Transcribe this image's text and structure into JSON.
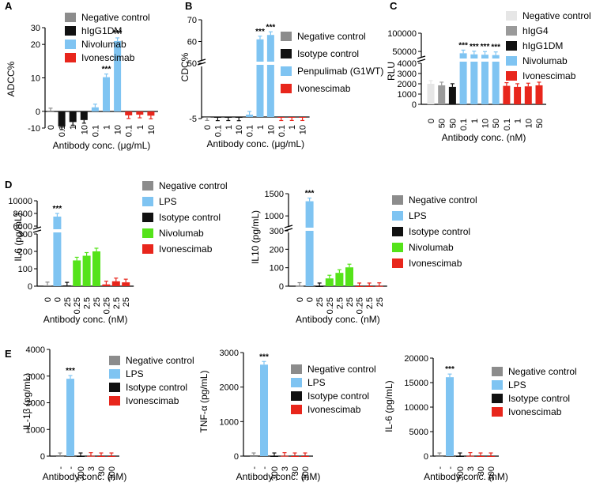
{
  "colors": {
    "negative_control": "#8c8c8c",
    "negative_control_light": "#e6e6e6",
    "hIgG4": "#9a9a9a",
    "black": "#111111",
    "blue": "#7fc4f2",
    "red": "#e8261c",
    "green": "#55e31a"
  },
  "chart_data": [
    {
      "id": "A",
      "panel_letter": "A",
      "type": "bar",
      "ylabel": "ADCC%",
      "xlabel": "Antibody conc. (μg/mL)",
      "ylim": [
        -5,
        25
      ],
      "yticks": [
        "-10",
        "0",
        "10",
        "20",
        "30"
      ],
      "categories": [
        "0",
        "0.1",
        "1",
        "10",
        "0.1",
        "1",
        "10",
        "0.1",
        "1",
        "10"
      ],
      "series": [
        {
          "name": "Negative control",
          "color": "#8c8c8c",
          "values": [
            0,
            null,
            null,
            null,
            null,
            null,
            null,
            null,
            null,
            null
          ]
        },
        {
          "name": "hIgG1DM",
          "color": "#111111",
          "values": [
            null,
            -4.5,
            -3.2,
            -2.6,
            null,
            null,
            null,
            null,
            null,
            null
          ]
        },
        {
          "name": "Nivolumab",
          "color": "#7fc4f2",
          "values": [
            null,
            null,
            null,
            null,
            1.2,
            10.2,
            21.0,
            null,
            null,
            null
          ]
        },
        {
          "name": "Ivonescimab",
          "color": "#e8261c",
          "values": [
            null,
            null,
            null,
            null,
            null,
            null,
            null,
            -1.2,
            -1.0,
            -1.3
          ]
        }
      ],
      "significance": [
        "",
        "",
        "",
        "",
        "",
        "***",
        "***",
        "",
        "",
        ""
      ],
      "legend": [
        "Negative control",
        "hIgG1DM",
        "Nivolumab",
        "Ivonescimab"
      ]
    },
    {
      "id": "B",
      "panel_letter": "B",
      "type": "bar",
      "ylabel": "CDC%",
      "xlabel": "Antibody conc. (μg/mL)",
      "ylim": [
        -5,
        70
      ],
      "yticks": [
        "-5",
        "50",
        "60",
        "70"
      ],
      "categories": [
        "0",
        "0.1",
        "1",
        "10",
        "0.1",
        "1",
        "10",
        "0.1",
        "1",
        "10"
      ],
      "series": [
        {
          "name": "Negative control",
          "color": "#8c8c8c",
          "values": [
            -1.0,
            null,
            null,
            null,
            null,
            null,
            null,
            null,
            null,
            null
          ]
        },
        {
          "name": "Isotype control",
          "color": "#111111",
          "values": [
            null,
            -1.5,
            -1.3,
            -1.7,
            null,
            null,
            null,
            null,
            null,
            null
          ]
        },
        {
          "name": "Penpulimab (G1WT)",
          "color": "#7fc4f2",
          "values": [
            null,
            null,
            null,
            null,
            2.0,
            61.0,
            63.0,
            null,
            null,
            null
          ]
        },
        {
          "name": "Ivonescimab",
          "color": "#e8261c",
          "values": [
            null,
            null,
            null,
            null,
            null,
            null,
            null,
            -1.2,
            -1.0,
            -1.1
          ]
        }
      ],
      "significance": [
        "",
        "",
        "",
        "",
        "",
        "***",
        "***",
        "",
        "",
        ""
      ],
      "legend": [
        "Negative control",
        "Isotype control",
        "Penpulimab (G1WT)",
        "Ivonescimab"
      ]
    },
    {
      "id": "C",
      "panel_letter": "C",
      "type": "bar",
      "ylabel": "RLU",
      "xlabel": "Antibody conc. (nM)",
      "ylim": [
        0,
        100000
      ],
      "yticks": [
        "0",
        "1000",
        "2000",
        "3000",
        "4000",
        "50000",
        "100000"
      ],
      "categories": [
        "0",
        "50",
        "50",
        "0.1",
        "1",
        "10",
        "50",
        "0.1",
        "1",
        "10",
        "50"
      ],
      "series": [
        {
          "name": "Negative control",
          "color": "#e6e6e6",
          "values": [
            2000,
            null,
            null,
            null,
            null,
            null,
            null,
            null,
            null,
            null,
            null
          ]
        },
        {
          "name": "hIgG4",
          "color": "#9a9a9a",
          "values": [
            null,
            1850,
            null,
            null,
            null,
            null,
            null,
            null,
            null,
            null,
            null
          ]
        },
        {
          "name": "hIgG1DM",
          "color": "#111111",
          "values": [
            null,
            null,
            1700,
            null,
            null,
            null,
            null,
            null,
            null,
            null,
            null
          ]
        },
        {
          "name": "Nivolumab",
          "color": "#7fc4f2",
          "values": [
            null,
            null,
            null,
            45000,
            42000,
            41000,
            40000,
            null,
            null,
            null,
            null
          ]
        },
        {
          "name": "Ivonescimab",
          "color": "#e8261c",
          "values": [
            null,
            null,
            null,
            null,
            null,
            null,
            null,
            1800,
            1700,
            1750,
            1850
          ]
        }
      ],
      "significance": [
        "",
        "",
        "",
        "***",
        "***",
        "***",
        "***",
        "",
        "",
        "",
        ""
      ],
      "legend": [
        "Negative control",
        "hIgG4",
        "hIgG1DM",
        "Nivolumab",
        "Ivonescimab"
      ]
    },
    {
      "id": "D1",
      "panel_letter": "D",
      "type": "bar",
      "ylabel": "IL6 (pg/mL)",
      "xlabel": "Antibody conc. (nM)",
      "ylim": [
        0,
        10000
      ],
      "yticks": [
        "0",
        "100",
        "200",
        "300",
        "6000",
        "8000",
        "10000"
      ],
      "categories": [
        "0",
        "0",
        "25",
        "0.25",
        "2.5",
        "25",
        "0.25",
        "2.5",
        "25"
      ],
      "series": [
        {
          "name": "Negative control",
          "color": "#8c8c8c",
          "values": [
            5,
            null,
            null,
            null,
            null,
            null,
            null,
            null,
            null
          ]
        },
        {
          "name": "LPS",
          "color": "#7fc4f2",
          "values": [
            null,
            7500,
            null,
            null,
            null,
            null,
            null,
            null,
            null
          ]
        },
        {
          "name": "Isotype control",
          "color": "#111111",
          "values": [
            null,
            null,
            4,
            null,
            null,
            null,
            null,
            null,
            null
          ]
        },
        {
          "name": "Nivolumab",
          "color": "#55e31a",
          "values": [
            null,
            null,
            null,
            148,
            175,
            200,
            null,
            null,
            null
          ]
        },
        {
          "name": "Ivonescimab",
          "color": "#e8261c",
          "values": [
            null,
            null,
            null,
            null,
            null,
            null,
            10,
            28,
            22
          ]
        }
      ],
      "significance": [
        "",
        "***",
        "",
        "",
        "",
        "",
        "",
        "",
        ""
      ],
      "legend": [
        "Negative control",
        "LPS",
        "Isotype control",
        "Nivolumab",
        "Ivonescimab"
      ]
    },
    {
      "id": "D2",
      "panel_letter": "",
      "type": "bar",
      "ylabel": "IL10 (pg/mL)",
      "xlabel": "Antibody conc. (nM)",
      "ylim": [
        0,
        1500
      ],
      "yticks": [
        "0",
        "100",
        "200",
        "300",
        "1000",
        "1500"
      ],
      "categories": [
        "0",
        "0",
        "25",
        "0.25",
        "2.5",
        "25",
        "0.25",
        "2.5",
        "25"
      ],
      "series": [
        {
          "name": "Negative control",
          "color": "#8c8c8c",
          "values": [
            2,
            null,
            null,
            null,
            null,
            null,
            null,
            null,
            null
          ]
        },
        {
          "name": "LPS",
          "color": "#7fc4f2",
          "values": [
            null,
            1330,
            null,
            null,
            null,
            null,
            null,
            null,
            null
          ]
        },
        {
          "name": "Isotype control",
          "color": "#111111",
          "values": [
            null,
            null,
            0,
            null,
            null,
            null,
            null,
            null,
            null
          ]
        },
        {
          "name": "Nivolumab",
          "color": "#55e31a",
          "values": [
            null,
            null,
            null,
            42,
            72,
            102,
            null,
            null,
            null
          ]
        },
        {
          "name": "Ivonescimab",
          "color": "#e8261c",
          "values": [
            null,
            null,
            null,
            null,
            null,
            null,
            0,
            0,
            1
          ]
        }
      ],
      "significance": [
        "",
        "***",
        "",
        "",
        "",
        "",
        "",
        "",
        ""
      ],
      "legend": [
        "Negative control",
        "LPS",
        "Isotype control",
        "Nivolumab",
        "Ivonescimab"
      ]
    },
    {
      "id": "E1",
      "panel_letter": "E",
      "type": "bar",
      "ylabel": "IL-1β (pg/mL)",
      "xlabel": "Antibody conc. (nM)",
      "ylim": [
        0,
        4000
      ],
      "yticks": [
        "0",
        "1000",
        "2000",
        "3000",
        "4000"
      ],
      "categories": [
        "-",
        "-",
        "300",
        "3",
        "30",
        "300"
      ],
      "series": [
        {
          "name": "Negative control",
          "color": "#8c8c8c",
          "values": [
            0,
            null,
            null,
            null,
            null,
            null
          ]
        },
        {
          "name": "LPS",
          "color": "#7fc4f2",
          "values": [
            null,
            2900,
            null,
            null,
            null,
            null
          ]
        },
        {
          "name": "Isotype control",
          "color": "#111111",
          "values": [
            null,
            null,
            0,
            null,
            null,
            null
          ]
        },
        {
          "name": "Ivonescimab",
          "color": "#e8261c",
          "values": [
            null,
            null,
            null,
            10,
            0,
            0
          ]
        }
      ],
      "significance": [
        "",
        "***",
        "",
        "",
        "",
        ""
      ],
      "legend": [
        "Negative control",
        "LPS",
        "Isotype control",
        "Ivonescimab"
      ]
    },
    {
      "id": "E2",
      "panel_letter": "",
      "type": "bar",
      "ylabel": "TNF-α (pg/mL)",
      "xlabel": "Antibody conc. (nM)",
      "ylim": [
        0,
        3000
      ],
      "yticks": [
        "0",
        "1000",
        "2000",
        "3000"
      ],
      "categories": [
        "-",
        "-",
        "300",
        "3",
        "30",
        "300"
      ],
      "series": [
        {
          "name": "Negative control",
          "color": "#8c8c8c",
          "values": [
            0,
            null,
            null,
            null,
            null,
            null
          ]
        },
        {
          "name": "LPS",
          "color": "#7fc4f2",
          "values": [
            null,
            2650,
            null,
            null,
            null,
            null
          ]
        },
        {
          "name": "Isotype control",
          "color": "#111111",
          "values": [
            null,
            null,
            0,
            null,
            null,
            null
          ]
        },
        {
          "name": "Ivonescimab",
          "color": "#e8261c",
          "values": [
            null,
            null,
            null,
            8,
            0,
            0
          ]
        }
      ],
      "significance": [
        "",
        "***",
        "",
        "",
        "",
        ""
      ],
      "legend": [
        "Negative control",
        "LPS",
        "Isotype control",
        "Ivonescimab"
      ]
    },
    {
      "id": "E3",
      "panel_letter": "",
      "type": "bar",
      "ylabel": "IL-6 (pg/mL)",
      "xlabel": "Antibody conc. (nM)",
      "ylim": [
        0,
        20000
      ],
      "yticks": [
        "0",
        "5000",
        "10000",
        "15000",
        "20000"
      ],
      "categories": [
        "-",
        "-",
        "300",
        "3",
        "30",
        "300"
      ],
      "series": [
        {
          "name": "Negative control",
          "color": "#8c8c8c",
          "values": [
            0,
            null,
            null,
            null,
            null,
            null
          ]
        },
        {
          "name": "LPS",
          "color": "#7fc4f2",
          "values": [
            null,
            16100,
            null,
            null,
            null,
            null
          ]
        },
        {
          "name": "Isotype control",
          "color": "#111111",
          "values": [
            null,
            null,
            0,
            null,
            null,
            null
          ]
        },
        {
          "name": "Ivonescimab",
          "color": "#e8261c",
          "values": [
            null,
            null,
            null,
            60,
            0,
            0
          ]
        }
      ],
      "significance": [
        "",
        "***",
        "",
        "",
        "",
        ""
      ],
      "legend": [
        "Negative control",
        "LPS",
        "Isotype control",
        "Ivonescimab"
      ]
    }
  ]
}
